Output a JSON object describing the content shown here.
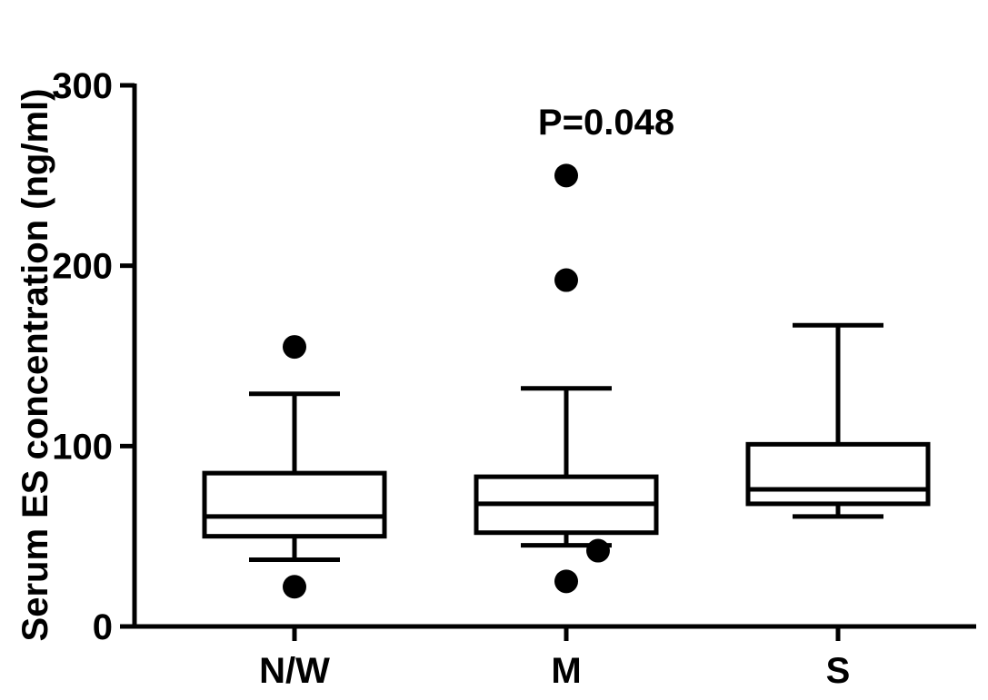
{
  "chart_data": {
    "type": "box",
    "title": "",
    "xlabel": "",
    "ylabel": "Serum ES concentration (ng/ml)",
    "ylim": [
      0,
      300
    ],
    "yticks": [
      "0",
      "100",
      "200",
      "300"
    ],
    "categories": [
      "N/W",
      "M",
      "S"
    ],
    "annotation": "P=0.048",
    "grid": false,
    "boxes": [
      {
        "category": "N/W",
        "whisker_low": 37,
        "q1": 50,
        "median": 61,
        "q3": 85,
        "whisker_high": 129,
        "outliers": [
          155,
          22
        ]
      },
      {
        "category": "M",
        "whisker_low": 45,
        "q1": 52,
        "median": 68,
        "q3": 83,
        "whisker_high": 132,
        "outliers": [
          250,
          192,
          42,
          25
        ]
      },
      {
        "category": "S",
        "whisker_low": 61,
        "q1": 68,
        "median": 76,
        "q3": 101,
        "whisker_high": 167,
        "outliers": []
      }
    ],
    "color": "#000000"
  }
}
